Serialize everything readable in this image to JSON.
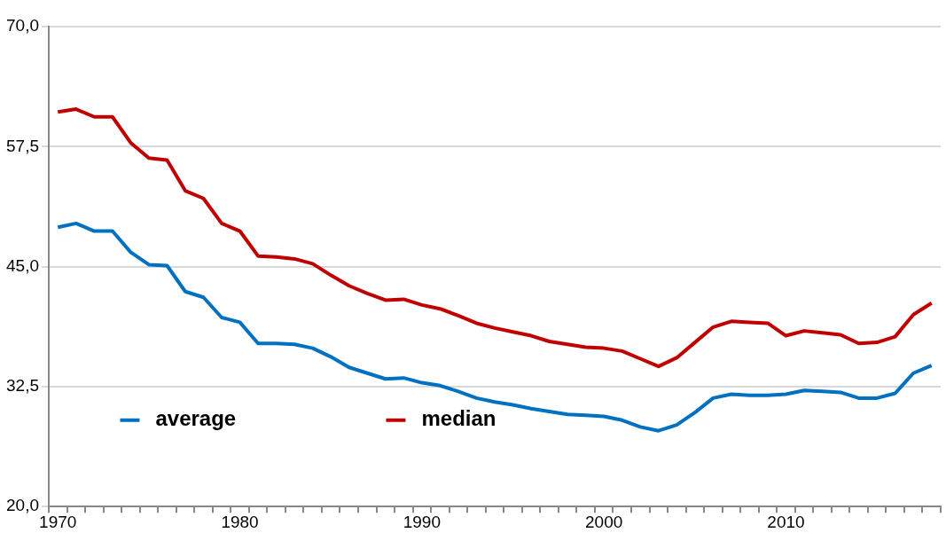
{
  "chart_data": {
    "type": "line",
    "categories": [
      "1970",
      null,
      null,
      null,
      null,
      null,
      null,
      null,
      null,
      null,
      "1980",
      null,
      null,
      null,
      null,
      null,
      null,
      null,
      null,
      null,
      "1990",
      null,
      null,
      null,
      null,
      null,
      null,
      null,
      null,
      null,
      "2000",
      null,
      null,
      null,
      null,
      null,
      null,
      null,
      null,
      null,
      "2010",
      null,
      null,
      null,
      null,
      null,
      null,
      null,
      null
    ],
    "series": [
      {
        "name": "average",
        "color": "#0070c0",
        "values": [
          49.1,
          49.5,
          48.7,
          48.7,
          46.5,
          45.2,
          45.1,
          42.4,
          41.8,
          39.7,
          39.2,
          37.0,
          37.0,
          36.9,
          36.5,
          35.6,
          34.5,
          33.9,
          33.3,
          33.4,
          32.9,
          32.6,
          32.0,
          31.3,
          30.9,
          30.6,
          30.2,
          29.9,
          29.6,
          29.5,
          29.4,
          29.0,
          28.3,
          27.9,
          28.5,
          29.8,
          31.3,
          31.7,
          31.6,
          31.6,
          31.7,
          32.1,
          32.0,
          31.9,
          31.3,
          31.3,
          31.8,
          33.9,
          34.7
        ]
      },
      {
        "name": "median",
        "color": "#c00000",
        "values": [
          61.1,
          61.4,
          60.6,
          60.6,
          57.9,
          56.3,
          56.1,
          52.9,
          52.1,
          49.5,
          48.7,
          46.1,
          46.0,
          45.8,
          45.3,
          44.1,
          43.0,
          42.2,
          41.5,
          41.6,
          41.0,
          40.6,
          39.9,
          39.1,
          38.6,
          38.2,
          37.8,
          37.2,
          36.9,
          36.6,
          36.5,
          36.2,
          35.4,
          34.6,
          35.5,
          37.1,
          38.7,
          39.3,
          39.2,
          39.1,
          37.8,
          38.3,
          38.1,
          37.9,
          37.0,
          37.1,
          37.7,
          40.0,
          41.2
        ]
      }
    ],
    "ylim": [
      20,
      70
    ],
    "yticks": [
      {
        "value": 20,
        "label": "20,0"
      },
      {
        "value": 32.5,
        "label": "32,5"
      },
      {
        "value": 45,
        "label": "45,0"
      },
      {
        "value": 57.5,
        "label": "57,5"
      },
      {
        "value": 70,
        "label": "70,0"
      }
    ],
    "grid": "y",
    "legend": "bottom left",
    "marker": "none",
    "line_style": "solid"
  }
}
